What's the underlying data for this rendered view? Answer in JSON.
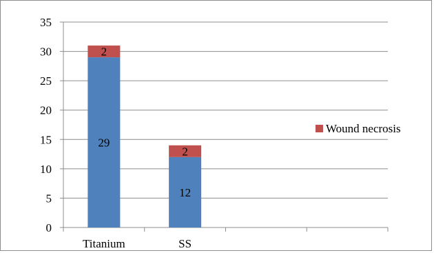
{
  "chart_data": {
    "type": "bar",
    "stacked": true,
    "categories": [
      "Titanium",
      "SS",
      "",
      ""
    ],
    "series": [
      {
        "name": "",
        "color": "#4F81BD",
        "values": [
          29,
          12,
          null,
          null
        ],
        "labels": [
          "29",
          "12",
          "",
          ""
        ]
      },
      {
        "name": "Wound necrosis",
        "color": "#C0504D",
        "values": [
          2,
          2,
          null,
          null
        ],
        "labels": [
          "2",
          "2",
          "",
          ""
        ]
      }
    ],
    "title": "",
    "xlabel": "",
    "ylabel": "",
    "ylim": [
      0,
      35
    ],
    "yticks": [
      0,
      5,
      10,
      15,
      20,
      25,
      30,
      35
    ],
    "grid": true,
    "legend": {
      "placement": "right",
      "entries": [
        "Wound necrosis"
      ]
    }
  }
}
